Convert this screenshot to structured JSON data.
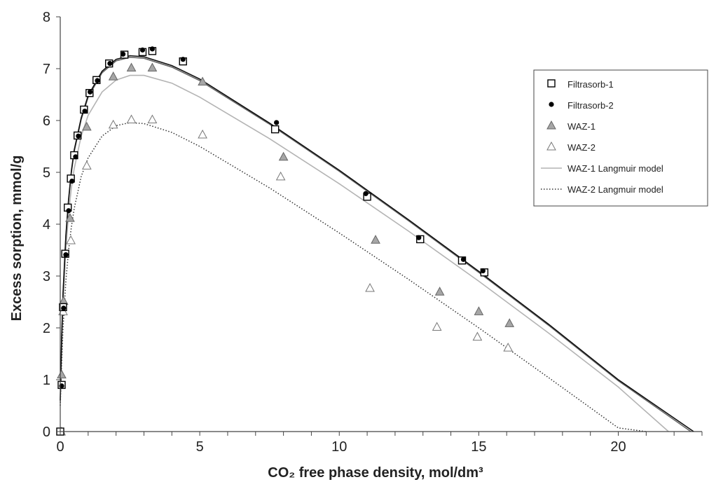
{
  "chart_data": {
    "type": "scatter",
    "title": "",
    "xlabel": "CO₂ free phase density, mol/dm³",
    "ylabel": "Excess sorption, mmol/g",
    "xlim": [
      0,
      23
    ],
    "ylim": [
      0,
      8
    ],
    "x_ticks": [
      0,
      5,
      10,
      15,
      20
    ],
    "y_ticks": [
      0,
      1,
      2,
      3,
      4,
      5,
      6,
      7,
      8
    ],
    "grid": false,
    "legend_position": "right",
    "series": [
      {
        "name": "Filtrasorb-1",
        "kind": "points",
        "marker": "square-open",
        "color": "#000000",
        "points": [
          [
            0.0,
            0.0
          ],
          [
            0.05,
            0.9
          ],
          [
            0.1,
            2.4
          ],
          [
            0.18,
            3.43
          ],
          [
            0.27,
            4.32
          ],
          [
            0.38,
            4.88
          ],
          [
            0.5,
            5.33
          ],
          [
            0.62,
            5.71
          ],
          [
            0.85,
            6.21
          ],
          [
            1.05,
            6.53
          ],
          [
            1.3,
            6.78
          ],
          [
            1.75,
            7.1
          ],
          [
            2.3,
            7.27
          ],
          [
            2.95,
            7.32
          ],
          [
            3.3,
            7.34
          ],
          [
            4.4,
            7.14
          ],
          [
            7.7,
            5.83
          ],
          [
            11.0,
            4.53
          ],
          [
            12.9,
            3.71
          ],
          [
            14.4,
            3.3
          ],
          [
            15.2,
            3.07
          ]
        ]
      },
      {
        "name": "Filtrasorb-2",
        "kind": "points",
        "marker": "circle-filled",
        "color": "#000000",
        "points": [
          [
            0.05,
            0.88
          ],
          [
            0.12,
            2.38
          ],
          [
            0.2,
            3.41
          ],
          [
            0.3,
            4.26
          ],
          [
            0.42,
            4.83
          ],
          [
            0.55,
            5.3
          ],
          [
            0.65,
            5.7
          ],
          [
            0.88,
            6.18
          ],
          [
            1.07,
            6.55
          ],
          [
            1.33,
            6.77
          ],
          [
            1.78,
            7.1
          ],
          [
            2.25,
            7.28
          ],
          [
            2.95,
            7.36
          ],
          [
            3.3,
            7.38
          ],
          [
            4.4,
            7.18
          ],
          [
            7.75,
            5.96
          ],
          [
            10.95,
            4.59
          ],
          [
            12.85,
            3.74
          ],
          [
            14.45,
            3.32
          ],
          [
            15.15,
            3.1
          ]
        ]
      },
      {
        "name": "WAZ-1",
        "kind": "points",
        "marker": "triangle-filled",
        "color": "#999999",
        "points": [
          [
            0.05,
            1.1
          ],
          [
            0.12,
            2.52
          ],
          [
            0.35,
            4.12
          ],
          [
            0.95,
            5.88
          ],
          [
            1.9,
            6.85
          ],
          [
            2.55,
            7.02
          ],
          [
            3.3,
            7.02
          ],
          [
            5.1,
            6.75
          ],
          [
            8.0,
            5.3
          ],
          [
            11.3,
            3.7
          ],
          [
            13.6,
            2.7
          ],
          [
            15.0,
            2.32
          ],
          [
            16.1,
            2.09
          ]
        ]
      },
      {
        "name": "WAZ-2",
        "kind": "points",
        "marker": "triangle-open",
        "color": "#777777",
        "points": [
          [
            0.03,
            0.0
          ],
          [
            0.1,
            2.32
          ],
          [
            0.38,
            3.69
          ],
          [
            0.95,
            5.13
          ],
          [
            1.9,
            5.92
          ],
          [
            2.55,
            6.02
          ],
          [
            3.3,
            6.02
          ],
          [
            5.1,
            5.73
          ],
          [
            7.9,
            4.92
          ],
          [
            11.1,
            2.77
          ],
          [
            13.5,
            2.02
          ],
          [
            14.95,
            1.83
          ],
          [
            16.05,
            1.62
          ]
        ]
      },
      {
        "name": "WAZ-1 Langmuir model",
        "kind": "line",
        "style": "solid",
        "color": "#b4b4b4",
        "points": [
          [
            0,
            0.55
          ],
          [
            0.05,
            1.6
          ],
          [
            0.1,
            2.45
          ],
          [
            0.2,
            3.5
          ],
          [
            0.3,
            4.2
          ],
          [
            0.4,
            4.7
          ],
          [
            0.5,
            5.07
          ],
          [
            0.75,
            5.7
          ],
          [
            1.0,
            6.1
          ],
          [
            1.5,
            6.55
          ],
          [
            2.0,
            6.78
          ],
          [
            2.5,
            6.87
          ],
          [
            3.0,
            6.87
          ],
          [
            4.0,
            6.72
          ],
          [
            5.0,
            6.45
          ],
          [
            7.5,
            5.65
          ],
          [
            10.0,
            4.78
          ],
          [
            12.5,
            3.86
          ],
          [
            15.0,
            2.9
          ],
          [
            17.5,
            1.9
          ],
          [
            20.0,
            0.86
          ],
          [
            21.8,
            0.0
          ]
        ]
      },
      {
        "name": "WAZ-2 Langmuir model",
        "kind": "line",
        "style": "dotted",
        "color": "#333333",
        "points": [
          [
            0,
            0.5
          ],
          [
            0.05,
            1.3
          ],
          [
            0.1,
            2.0
          ],
          [
            0.2,
            2.9
          ],
          [
            0.3,
            3.5
          ],
          [
            0.4,
            3.95
          ],
          [
            0.5,
            4.3
          ],
          [
            0.75,
            4.92
          ],
          [
            1.0,
            5.28
          ],
          [
            1.5,
            5.7
          ],
          [
            2.0,
            5.9
          ],
          [
            2.5,
            5.96
          ],
          [
            3.0,
            5.94
          ],
          [
            4.0,
            5.77
          ],
          [
            5.0,
            5.5
          ],
          [
            7.5,
            4.7
          ],
          [
            10.0,
            3.83
          ],
          [
            12.5,
            2.93
          ],
          [
            15.0,
            2.0
          ],
          [
            17.5,
            1.04
          ],
          [
            20.0,
            0.07
          ],
          [
            21.0,
            0.0
          ]
        ]
      },
      {
        "kind": "line",
        "style": "solid",
        "color": "#666666",
        "points": [
          [
            0,
            0.6
          ],
          [
            0.05,
            1.8
          ],
          [
            0.1,
            2.65
          ],
          [
            0.2,
            3.75
          ],
          [
            0.3,
            4.45
          ],
          [
            0.4,
            5.0
          ],
          [
            0.5,
            5.4
          ],
          [
            0.75,
            6.02
          ],
          [
            1.0,
            6.45
          ],
          [
            1.5,
            6.92
          ],
          [
            2.0,
            7.15
          ],
          [
            2.5,
            7.22
          ],
          [
            3.0,
            7.2
          ],
          [
            4.0,
            7.03
          ],
          [
            5.0,
            6.77
          ],
          [
            7.5,
            5.93
          ],
          [
            10.0,
            5.02
          ],
          [
            12.5,
            4.06
          ],
          [
            15.0,
            3.07
          ],
          [
            17.5,
            2.05
          ],
          [
            20.0,
            0.98
          ],
          [
            22.6,
            0.0
          ]
        ]
      },
      {
        "kind": "line",
        "style": "solid",
        "color": "#111111",
        "points": [
          [
            0,
            0.6
          ],
          [
            0.05,
            1.82
          ],
          [
            0.1,
            2.68
          ],
          [
            0.2,
            3.78
          ],
          [
            0.3,
            4.48
          ],
          [
            0.4,
            5.03
          ],
          [
            0.5,
            5.43
          ],
          [
            0.75,
            6.05
          ],
          [
            1.0,
            6.48
          ],
          [
            1.5,
            6.95
          ],
          [
            2.0,
            7.18
          ],
          [
            2.5,
            7.25
          ],
          [
            3.0,
            7.23
          ],
          [
            4.0,
            7.06
          ],
          [
            5.0,
            6.8
          ],
          [
            7.5,
            5.95
          ],
          [
            10.0,
            5.04
          ],
          [
            12.5,
            4.08
          ],
          [
            15.0,
            3.09
          ],
          [
            17.5,
            2.07
          ],
          [
            20.0,
            1.0
          ],
          [
            22.7,
            0.0
          ]
        ]
      }
    ]
  }
}
